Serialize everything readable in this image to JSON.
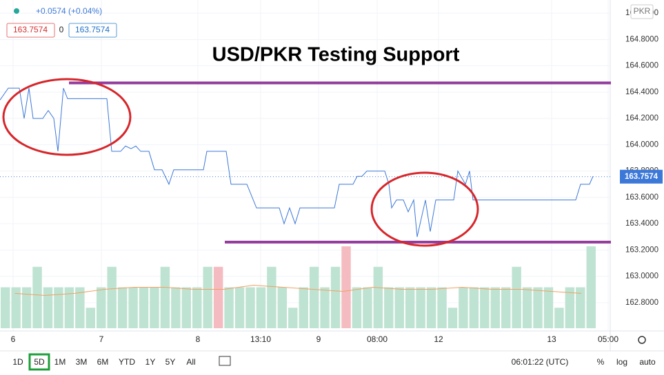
{
  "chart_data": {
    "type": "line",
    "title": "USD/PKR Testing Support",
    "header": {
      "change": "+0.0574 (+0.04%)",
      "bid": "163.7574",
      "spread": "0",
      "ask": "163.7574",
      "currency": "PKR"
    },
    "x": [
      0,
      1.2,
      2.8,
      3.5,
      4.2,
      4.8,
      6.2,
      7.0,
      7.8,
      8.4,
      9.2,
      9.8,
      15.5,
      16.2,
      17.5,
      18.2,
      19.0,
      19.7,
      20.4,
      21.6,
      22.4,
      23.5,
      24.5,
      25.2,
      29.5,
      30.0,
      32.8,
      33.5,
      35.8,
      37.2,
      40.5,
      41.2,
      42.0,
      42.8,
      43.5,
      48.5,
      49.2,
      51.2,
      51.8,
      52.5,
      53.2,
      55.8,
      56.4,
      56.8,
      57.5,
      58.5,
      59.2,
      60.0,
      60.5,
      61.7,
      62.4,
      63.2,
      65.8,
      66.4,
      67.5,
      68.1,
      68.6,
      83.5,
      84.2,
      85.5,
      86.0
    ],
    "series": [
      {
        "name": "USD/PKR",
        "color": "#3c78d8",
        "values": [
          164.34,
          164.43,
          164.43,
          164.2,
          164.43,
          164.2,
          164.2,
          164.26,
          164.2,
          163.95,
          164.43,
          164.35,
          164.35,
          163.95,
          163.95,
          163.99,
          163.97,
          163.99,
          163.95,
          163.95,
          163.81,
          163.81,
          163.7,
          163.81,
          163.81,
          163.95,
          163.95,
          163.7,
          163.7,
          163.52,
          163.52,
          163.4,
          163.52,
          163.4,
          163.52,
          163.52,
          163.7,
          163.7,
          163.76,
          163.76,
          163.8,
          163.8,
          163.7,
          163.52,
          163.58,
          163.58,
          163.49,
          163.58,
          163.3,
          163.58,
          163.34,
          163.58,
          163.58,
          163.8,
          163.7,
          163.8,
          163.58,
          163.58,
          163.7,
          163.7,
          163.76
        ]
      }
    ],
    "last_price": 163.7574,
    "last_price_color": "#3c78d8",
    "levels": [
      {
        "value": 164.47,
        "x": [
          10,
          88.6
        ],
        "color": "#933c9c"
      },
      {
        "value": 163.26,
        "x": [
          32.6,
          88.6
        ],
        "color": "#933c9c"
      }
    ],
    "xlim": [
      0,
      88.5
    ],
    "ylim": [
      162.59,
      165.1
    ],
    "xticks": [
      {
        "value": 1.9,
        "label": "6"
      },
      {
        "value": 14.7,
        "label": "7"
      },
      {
        "value": 28.7,
        "label": "8"
      },
      {
        "value": 37.8,
        "label": "13:10"
      },
      {
        "value": 46.2,
        "label": "9"
      },
      {
        "value": 54.7,
        "label": "08:00"
      },
      {
        "value": 63.6,
        "label": "12"
      },
      {
        "value": 80.0,
        "label": "13"
      },
      {
        "value": 88.2,
        "label": "05:00"
      }
    ],
    "yticks": [
      {
        "value": 162.8,
        "label": "162.8000"
      },
      {
        "value": 163.0,
        "label": "163.0000"
      },
      {
        "value": 163.2,
        "label": "163.2000"
      },
      {
        "value": 163.4,
        "label": "163.4000"
      },
      {
        "value": 163.6,
        "label": "163.6000"
      },
      {
        "value": 163.8,
        "label": "163.8000"
      },
      {
        "value": 164.0,
        "label": "164.0000"
      },
      {
        "value": 164.2,
        "label": "164.2000"
      },
      {
        "value": 164.4,
        "label": "164.4000"
      },
      {
        "value": 164.6,
        "label": "164.6000"
      },
      {
        "value": 164.8,
        "label": "164.8000"
      },
      {
        "value": 165.0,
        "label": "165.0000"
      }
    ],
    "volume": {
      "ylim": [
        0,
        4
      ],
      "values": [
        2,
        2,
        2,
        3,
        2,
        2,
        2,
        2,
        1,
        2,
        3,
        2,
        2,
        2,
        2,
        3,
        2,
        2,
        2,
        3,
        3,
        2,
        2,
        2,
        2,
        3,
        2,
        1,
        2,
        3,
        2,
        3,
        4,
        2,
        2,
        3,
        2,
        2,
        2,
        2,
        2,
        2,
        1,
        2,
        2,
        2,
        2,
        2,
        3,
        2,
        2,
        2,
        1,
        2,
        2,
        4
      ],
      "colors": [
        "#bfe3d2",
        "#bfe3d2",
        "#bfe3d2",
        "#bfe3d2",
        "#bfe3d2",
        "#bfe3d2",
        "#bfe3d2",
        "#bfe3d2",
        "#bfe3d2",
        "#bfe3d2",
        "#bfe3d2",
        "#bfe3d2",
        "#bfe3d2",
        "#bfe3d2",
        "#bfe3d2",
        "#bfe3d2",
        "#bfe3d2",
        "#bfe3d2",
        "#bfe3d2",
        "#bfe3d2",
        "#f4bcc0",
        "#bfe3d2",
        "#bfe3d2",
        "#bfe3d2",
        "#bfe3d2",
        "#bfe3d2",
        "#bfe3d2",
        "#bfe3d2",
        "#bfe3d2",
        "#bfe3d2",
        "#bfe3d2",
        "#bfe3d2",
        "#f4bcc0",
        "#bfe3d2",
        "#bfe3d2",
        "#bfe3d2",
        "#bfe3d2",
        "#bfe3d2",
        "#bfe3d2",
        "#bfe3d2",
        "#bfe3d2",
        "#bfe3d2",
        "#bfe3d2",
        "#bfe3d2",
        "#bfe3d2",
        "#bfe3d2",
        "#bfe3d2",
        "#bfe3d2",
        "#bfe3d2",
        "#bfe3d2",
        "#bfe3d2",
        "#bfe3d2",
        "#bfe3d2",
        "#bfe3d2",
        "#bfe3d2",
        "#bfe3d2"
      ],
      "ma": [
        1.7,
        1.6,
        1.7,
        1.9,
        2.0,
        2.0,
        1.9,
        1.9,
        2.1,
        2.0,
        1.9,
        1.8,
        2.0,
        1.9,
        1.9,
        2.0,
        1.9,
        1.9,
        1.8,
        1.7
      ],
      "ma_color": "#f0a060"
    },
    "toolbar": {
      "ranges": [
        "1D",
        "5D",
        "1M",
        "3M",
        "6M",
        "YTD",
        "1Y",
        "5Y",
        "All"
      ],
      "active": "5D",
      "time": "06:01:22 (UTC)",
      "options": [
        "%",
        "log",
        "auto"
      ]
    }
  }
}
